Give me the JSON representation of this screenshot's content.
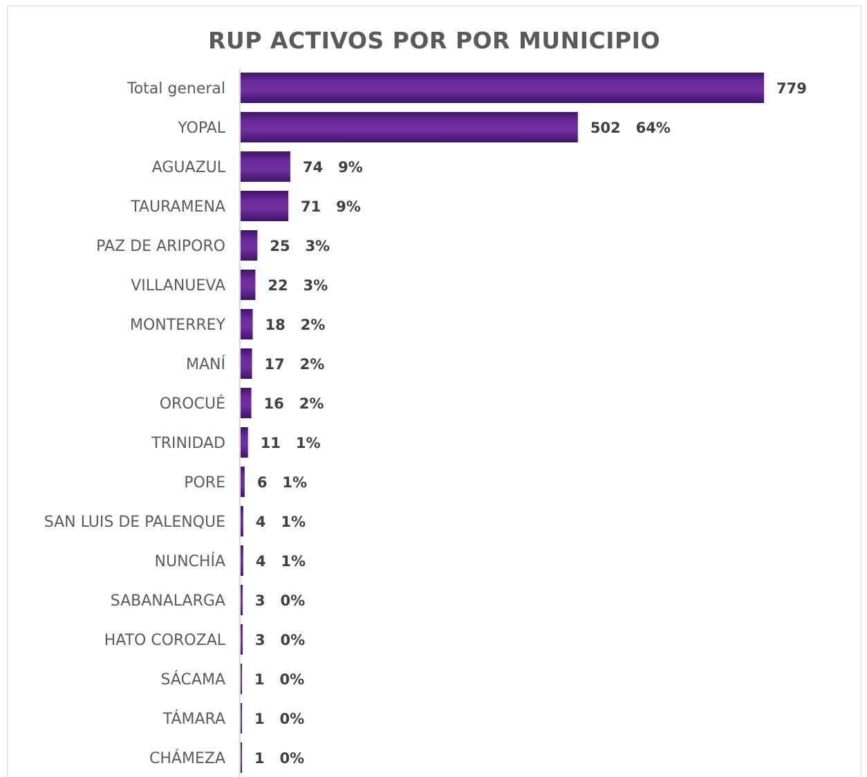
{
  "chart_data": {
    "type": "bar",
    "orientation": "horizontal",
    "title": "RUP ACTIVOS POR POR MUNICIPIO",
    "categories": [
      "Total general",
      "YOPAL",
      "AGUAZUL",
      "TAURAMENA",
      "PAZ DE ARIPORO",
      "VILLANUEVA",
      "MONTERREY",
      "MANÍ",
      "OROCUÉ",
      "TRINIDAD",
      "PORE",
      "SAN LUIS DE PALENQUE",
      "NUNCHÍA",
      "SABANALARGA",
      "HATO COROZAL",
      "SÁCAMA",
      "TÁMARA",
      "CHÁMEZA"
    ],
    "values": [
      779,
      502,
      74,
      71,
      25,
      22,
      18,
      17,
      16,
      11,
      6,
      4,
      4,
      3,
      3,
      1,
      1,
      1
    ],
    "data_labels": [
      "779",
      "502   64%",
      "74   9%",
      "71   9%",
      "25   3%",
      "22   3%",
      "18   2%",
      "17   2%",
      "16   2%",
      "11   1%",
      "6   1%",
      "4   1%",
      "4   1%",
      "3   0%",
      "3   0%",
      "1   0%",
      "1   0%",
      "1   0%"
    ],
    "xlim": [
      0,
      779
    ],
    "grid": false,
    "legend": "none",
    "bar_color": "#6a2a9c",
    "bar_color_dark": "#3f1466"
  }
}
